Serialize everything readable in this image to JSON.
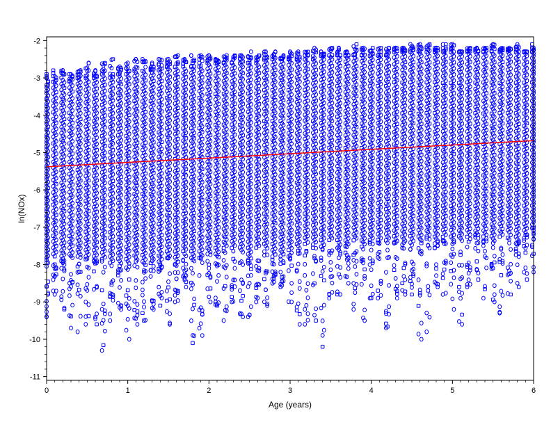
{
  "chart_data": {
    "type": "scatter",
    "title": "",
    "xlabel": "Age (years)",
    "ylabel": "ln(NOx)",
    "xlim": [
      0,
      6
    ],
    "ylim": [
      -11.1,
      -1.9
    ],
    "xticks": [
      0,
      1,
      2,
      3,
      4,
      5,
      6
    ],
    "yticks": [
      -2,
      -3,
      -4,
      -5,
      -6,
      -7,
      -8,
      -9,
      -10,
      -11
    ],
    "x_tick_labels": [
      "0",
      "1",
      "2",
      "3",
      "4",
      "5",
      "6"
    ],
    "y_tick_labels": [
      "-2",
      "-3",
      "-4",
      "-5",
      "-6",
      "-7",
      "-8",
      "-9",
      "-10",
      "-11"
    ],
    "grid": false,
    "legend": "none",
    "scatter": {
      "marker": "open circle / open square",
      "color": "#0000ff",
      "x_values": [
        0,
        0.1,
        0.2,
        0.3,
        0.4,
        0.5,
        0.6,
        0.7,
        0.8,
        0.9,
        1.0,
        1.1,
        1.2,
        1.3,
        1.4,
        1.5,
        1.6,
        1.7,
        1.8,
        1.9,
        2.0,
        2.1,
        2.2,
        2.3,
        2.4,
        2.5,
        2.6,
        2.7,
        2.8,
        2.9,
        3.0,
        3.1,
        3.2,
        3.3,
        3.4,
        3.5,
        3.6,
        3.7,
        3.8,
        3.9,
        4.0,
        4.1,
        4.2,
        4.3,
        4.4,
        4.5,
        4.6,
        4.7,
        4.8,
        4.9,
        5.0,
        5.1,
        5.2,
        5.3,
        5.4,
        5.5,
        5.6,
        5.7,
        5.8,
        5.9,
        6.0
      ],
      "y_top": [
        -2.9,
        -2.8,
        -2.8,
        -2.9,
        -2.8,
        -2.6,
        -2.8,
        -2.6,
        -2.5,
        -2.7,
        -2.6,
        -2.5,
        -2.5,
        -2.6,
        -2.5,
        -2.5,
        -2.4,
        -2.5,
        -2.4,
        -2.4,
        -2.4,
        -2.5,
        -2.4,
        -2.4,
        -2.4,
        -2.3,
        -2.4,
        -2.3,
        -2.3,
        -2.4,
        -2.3,
        -2.3,
        -2.3,
        -2.2,
        -2.3,
        -2.2,
        -2.2,
        -2.3,
        -2.1,
        -2.2,
        -2.2,
        -2.2,
        -2.2,
        -2.2,
        -2.2,
        -2.1,
        -2.1,
        -2.1,
        -2.2,
        -2.1,
        -2.1,
        -2.3,
        -2.2,
        -2.2,
        -2.2,
        -2.1,
        -2.2,
        -2.2,
        -2.1,
        -2.3,
        -2.1
      ],
      "y_bottom": [
        -9.4,
        -8.8,
        -9.2,
        -9.7,
        -9.8,
        -9.6,
        -9.6,
        -10.3,
        -9.5,
        -9.2,
        -10.0,
        -9.6,
        -9.5,
        -9.2,
        -9.1,
        -9.6,
        -9.0,
        -8.6,
        -10.1,
        -9.9,
        -9.0,
        -9.1,
        -9.5,
        -9.0,
        -9.4,
        -9.4,
        -9.0,
        -9.1,
        -8.5,
        -8.6,
        -9.0,
        -9.6,
        -9.6,
        -9.5,
        -10.2,
        -8.9,
        -8.8,
        -8.5,
        -9.2,
        -9.5,
        -8.9,
        -8.9,
        -9.7,
        -8.9,
        -8.8,
        -8.8,
        -10.0,
        -9.8,
        -8.6,
        -8.8,
        -9.2,
        -9.6,
        -8.6,
        -8.4,
        -8.9,
        -9.0,
        -9.3,
        -8.8,
        -8.6,
        -8.4,
        -8.2
      ],
      "y_core_top": [
        -3.2,
        -3.1,
        -3.0,
        -3.1,
        -3.0,
        -3.0,
        -3.0,
        -2.9,
        -3.0,
        -2.9,
        -2.9,
        -2.8,
        -2.8,
        -2.8,
        -2.8,
        -2.7,
        -2.7,
        -2.7,
        -2.7,
        -2.7,
        -2.6,
        -2.6,
        -2.6,
        -2.6,
        -2.6,
        -2.6,
        -2.6,
        -2.5,
        -2.5,
        -2.5,
        -2.5,
        -2.5,
        -2.5,
        -2.5,
        -2.4,
        -2.4,
        -2.4,
        -2.4,
        -2.4,
        -2.4,
        -2.4,
        -2.4,
        -2.4,
        -2.3,
        -2.3,
        -2.3,
        -2.3,
        -2.3,
        -2.3,
        -2.3,
        -2.3,
        -2.3,
        -2.3,
        -2.3,
        -2.3,
        -2.3,
        -2.3,
        -2.3,
        -2.3,
        -2.3,
        -2.3
      ],
      "y_core_bottom": [
        -7.9,
        -7.8,
        -7.9,
        -7.8,
        -7.8,
        -7.8,
        -7.9,
        -7.9,
        -8.0,
        -8.0,
        -8.0,
        -7.9,
        -8.0,
        -7.9,
        -8.0,
        -7.8,
        -8.0,
        -7.8,
        -7.9,
        -7.8,
        -7.7,
        -7.8,
        -7.6,
        -7.6,
        -7.7,
        -7.9,
        -7.6,
        -7.6,
        -7.8,
        -7.8,
        -7.6,
        -7.6,
        -7.5,
        -7.4,
        -7.6,
        -7.4,
        -7.5,
        -7.5,
        -7.4,
        -7.5,
        -7.4,
        -7.4,
        -7.4,
        -7.4,
        -7.4,
        -7.5,
        -7.4,
        -7.3,
        -7.4,
        -7.3,
        -7.4,
        -7.4,
        -7.3,
        -7.2,
        -7.3,
        -7.4,
        -7.3,
        -7.2,
        -7.4,
        -7.2,
        -7.0
      ]
    },
    "fit_line": {
      "color": "#ff0000",
      "x": [
        0,
        6
      ],
      "y": [
        -5.38,
        -4.68
      ]
    }
  }
}
